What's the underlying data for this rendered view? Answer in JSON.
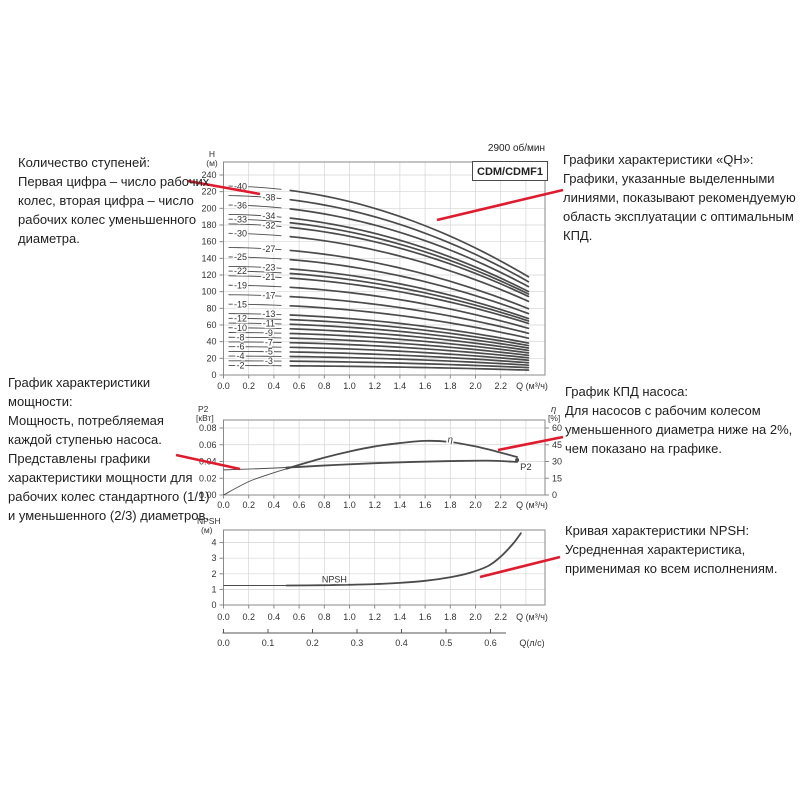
{
  "page": {
    "background": "#ffffff",
    "accent_red": "#e01b2d",
    "curve_color": "#4b4b4b",
    "grid_color": "#d4d4d4",
    "frame_color": "#8a8a8a",
    "rpm_label": "2900 об/мин",
    "model_label": "CDM/CDMF1"
  },
  "annotations": {
    "stages": {
      "title": "Количество ступеней:",
      "body": "Первая цифра – число рабочих колес, вторая цифра – число рабочих колес уменьшенного диаметра."
    },
    "qh": {
      "title": "Графики характеристики «QH»:",
      "body": "Графики, указанные выделенными линиями, показывают рекомендуемую область эксплуатации с оптимальным КПД."
    },
    "power": {
      "title": "График характеристики мощности:",
      "body": "Мощность, потребляемая каждой ступенью насоса. Представлены графики характеристики мощности для рабочих колес стандартного (1/1) и уменьшенного (2/3) диаметров."
    },
    "eff": {
      "title": "График КПД насоса:",
      "body": "Для насосов с рабочим колесом уменьшенного диаметра ниже на 2%, чем показано на графике."
    },
    "npsh": {
      "title": "Кривая характеристики NPSH:",
      "body": "Усредненная характеристика, применимая ко всем исполнениям."
    }
  },
  "chart_data": [
    {
      "id": "qh",
      "type": "line",
      "title": "CDM/CDMF1",
      "speed": "2900 об/мин",
      "xlabel": "Q (м³/ч)",
      "ylabel_lines": [
        "H",
        "(м)"
      ],
      "xlim": [
        0,
        2.55
      ],
      "ylim": [
        0,
        256
      ],
      "x_ticks": [
        0.0,
        0.2,
        0.4,
        0.6,
        0.8,
        1.0,
        1.2,
        1.4,
        1.6,
        1.8,
        2.0,
        2.2
      ],
      "grid_x": [
        0.2,
        0.4,
        0.6,
        0.8,
        1.0,
        1.2,
        1.4,
        1.6,
        1.8,
        2.0,
        2.2,
        2.4
      ],
      "y_ticks": [
        0,
        20,
        40,
        60,
        80,
        100,
        120,
        140,
        160,
        180,
        200,
        220,
        240
      ],
      "q_end": 2.42,
      "droop_end_ratio": 0.52,
      "recommended_from_q": 0.5,
      "label_col_q": [
        0.135,
        0.36
      ],
      "stages": [
        {
          "label": "-2",
          "shutoff_head_m": 11.3
        },
        {
          "label": "-3",
          "shutoff_head_m": 17.0
        },
        {
          "label": "-4",
          "shutoff_head_m": 22.7
        },
        {
          "label": "-5",
          "shutoff_head_m": 28.3
        },
        {
          "label": "-6",
          "shutoff_head_m": 34.0
        },
        {
          "label": "-7",
          "shutoff_head_m": 39.7
        },
        {
          "label": "-8",
          "shutoff_head_m": 45.3
        },
        {
          "label": "-9",
          "shutoff_head_m": 51.0
        },
        {
          "label": "-10",
          "shutoff_head_m": 56.7
        },
        {
          "label": "-11",
          "shutoff_head_m": 62.3
        },
        {
          "label": "-12",
          "shutoff_head_m": 68.0
        },
        {
          "label": "-13",
          "shutoff_head_m": 73.7
        },
        {
          "label": "-15",
          "shutoff_head_m": 85.0
        },
        {
          "label": "-17",
          "shutoff_head_m": 96.3
        },
        {
          "label": "-19",
          "shutoff_head_m": 107.7
        },
        {
          "label": "-21",
          "shutoff_head_m": 119.0
        },
        {
          "label": "-22",
          "shutoff_head_m": 124.7
        },
        {
          "label": "-23",
          "shutoff_head_m": 130.3
        },
        {
          "label": "-25",
          "shutoff_head_m": 141.7
        },
        {
          "label": "-27",
          "shutoff_head_m": 153.0
        },
        {
          "label": "-30",
          "shutoff_head_m": 170.0
        },
        {
          "label": "-32",
          "shutoff_head_m": 181.3
        },
        {
          "label": "-33",
          "shutoff_head_m": 187.0
        },
        {
          "label": "-34",
          "shutoff_head_m": 192.7
        },
        {
          "label": "-36",
          "shutoff_head_m": 204.0
        },
        {
          "label": "-38",
          "shutoff_head_m": 215.3
        },
        {
          "label": "-40",
          "shutoff_head_m": 226.7
        }
      ]
    },
    {
      "id": "power_eff",
      "type": "line",
      "xlabel": "Q (м³/ч)",
      "ylabel_left_lines": [
        "P2",
        "[кВт]"
      ],
      "ylabel_right_lines": [
        "η",
        "[%]"
      ],
      "x_ticks": [
        0.0,
        0.2,
        0.4,
        0.6,
        0.8,
        1.0,
        1.2,
        1.4,
        1.6,
        1.8,
        2.0,
        2.2
      ],
      "grid_x": [
        0.2,
        0.4,
        0.6,
        0.8,
        1.0,
        1.2,
        1.4,
        1.6,
        1.8,
        2.0,
        2.2,
        2.4
      ],
      "y_left_ticks": [
        0.0,
        0.02,
        0.04,
        0.06,
        0.08
      ],
      "y_right_ticks": [
        0,
        15,
        30,
        45,
        60
      ],
      "bold_from_q": 0.5,
      "series": [
        {
          "name": "P2",
          "axis": "left",
          "label_at": [
            2.4,
            0.0335
          ],
          "points": [
            [
              0,
              0.03
            ],
            [
              0.3,
              0.0315
            ],
            [
              0.6,
              0.0335
            ],
            [
              0.9,
              0.036
            ],
            [
              1.2,
              0.038
            ],
            [
              1.5,
              0.0395
            ],
            [
              1.8,
              0.0405
            ],
            [
              2.1,
              0.041
            ],
            [
              2.33,
              0.0395
            ]
          ]
        },
        {
          "name": "η",
          "axis": "right",
          "label_at": [
            1.8,
            49.5
          ],
          "points": [
            [
              0,
              0
            ],
            [
              0.2,
              12
            ],
            [
              0.4,
              20
            ],
            [
              0.6,
              27
            ],
            [
              0.8,
              33.5
            ],
            [
              1.0,
              39
            ],
            [
              1.2,
              43.5
            ],
            [
              1.4,
              46.5
            ],
            [
              1.6,
              48.5
            ],
            [
              1.8,
              47.5
            ],
            [
              2.0,
              43.5
            ],
            [
              2.2,
              38
            ],
            [
              2.33,
              34
            ]
          ]
        }
      ]
    },
    {
      "id": "npsh",
      "type": "line",
      "xlabel": "Q (м³/ч)",
      "ylabel_lines": [
        "NPSH",
        "(м)"
      ],
      "x_ticks": [
        0.0,
        0.2,
        0.4,
        0.6,
        0.8,
        1.0,
        1.2,
        1.4,
        1.6,
        1.8,
        2.0,
        2.2
      ],
      "grid_x": [
        0.2,
        0.4,
        0.6,
        0.8,
        1.0,
        1.2,
        1.4,
        1.6,
        1.8,
        2.0,
        2.2,
        2.4
      ],
      "y_ticks": [
        0,
        1,
        2,
        3,
        4
      ],
      "bold_from_q": 0.5,
      "series": [
        {
          "name": "NPSH",
          "label_at": [
            0.88,
            1.62
          ],
          "points": [
            [
              0,
              1.25
            ],
            [
              0.5,
              1.25
            ],
            [
              0.8,
              1.27
            ],
            [
              1.0,
              1.3
            ],
            [
              1.2,
              1.34
            ],
            [
              1.4,
              1.42
            ],
            [
              1.6,
              1.55
            ],
            [
              1.8,
              1.78
            ],
            [
              1.95,
              2.05
            ],
            [
              2.1,
              2.5
            ],
            [
              2.2,
              3.1
            ],
            [
              2.3,
              3.95
            ],
            [
              2.36,
              4.6
            ]
          ]
        }
      ]
    },
    {
      "id": "q_lps_axis",
      "type": "axis",
      "label": "Q(л/с)",
      "ticks": [
        0.0,
        0.1,
        0.2,
        0.3,
        0.4,
        0.5,
        0.6
      ]
    }
  ]
}
